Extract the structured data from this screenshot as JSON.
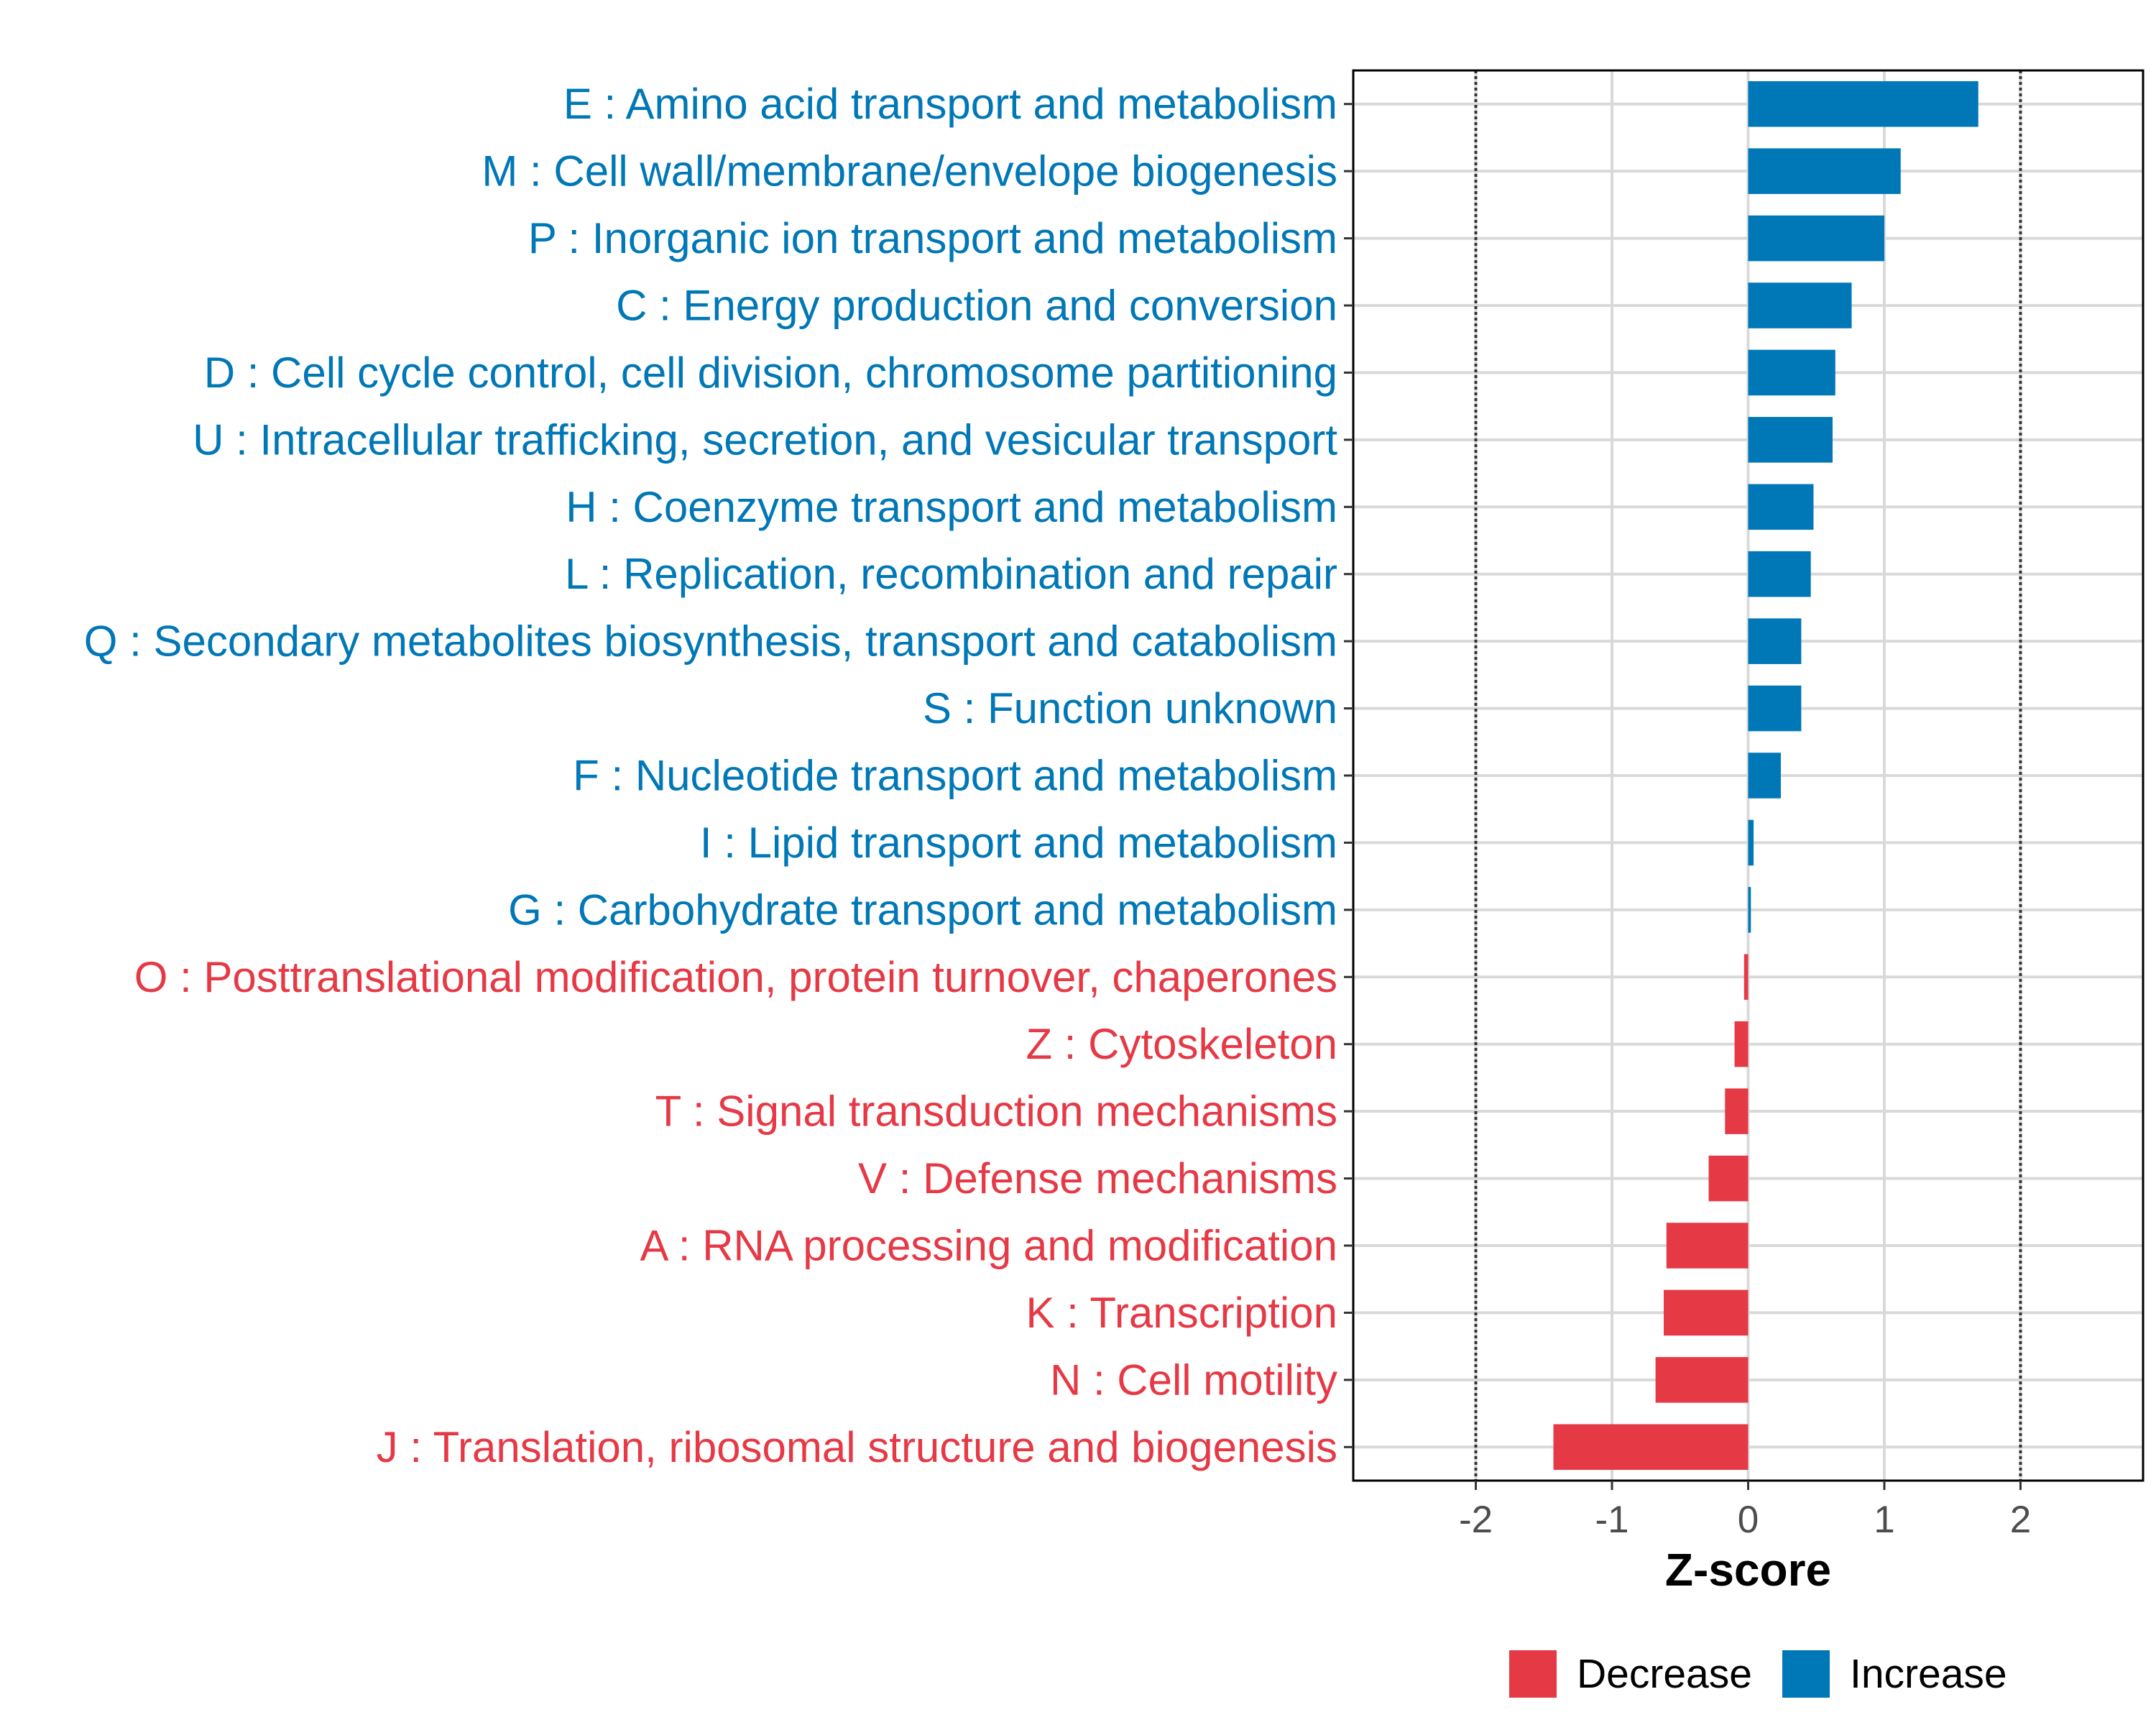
{
  "chart_data": {
    "type": "bar",
    "orientation": "horizontal",
    "xlabel": "Z-score",
    "xlim": [
      -2.9,
      2.9
    ],
    "xticks": [
      -2,
      -1,
      0,
      1,
      2
    ],
    "xtick_labels": [
      "-2",
      "-1",
      "0",
      "1",
      "2"
    ],
    "reference_lines": [
      -2,
      2
    ],
    "grid": true,
    "legend_position": "bottom",
    "categories": [
      "E : Amino acid transport and metabolism",
      "M : Cell wall/membrane/envelope biogenesis",
      "P : Inorganic ion transport and metabolism",
      "C : Energy production and conversion",
      "D : Cell cycle control, cell division, chromosome partitioning",
      "U : Intracellular trafficking, secretion, and vesicular transport",
      "H : Coenzyme transport and metabolism",
      "L : Replication, recombination and repair",
      "Q : Secondary metabolites biosynthesis, transport and catabolism",
      "S : Function unknown",
      "F : Nucleotide transport and metabolism",
      "I : Lipid transport and metabolism",
      "G : Carbohydrate transport and metabolism",
      "O : Posttranslational modification, protein turnover, chaperones",
      "Z : Cytoskeleton",
      "T : Signal transduction mechanisms",
      "V : Defense mechanisms",
      "A : RNA processing and modification",
      "K : Transcription",
      "N : Cell motility",
      "J : Translation, ribosomal structure and biogenesis"
    ],
    "values": [
      1.69,
      1.12,
      1.0,
      0.76,
      0.64,
      0.62,
      0.48,
      0.46,
      0.39,
      0.39,
      0.24,
      0.04,
      0.02,
      -0.03,
      -0.1,
      -0.17,
      -0.29,
      -0.6,
      -0.62,
      -0.68,
      -1.43
    ],
    "groups": [
      "Increase",
      "Increase",
      "Increase",
      "Increase",
      "Increase",
      "Increase",
      "Increase",
      "Increase",
      "Increase",
      "Increase",
      "Increase",
      "Increase",
      "Increase",
      "Decrease",
      "Decrease",
      "Decrease",
      "Decrease",
      "Decrease",
      "Decrease",
      "Decrease",
      "Decrease"
    ],
    "legend": [
      {
        "name": "Decrease",
        "color": "#e63946"
      },
      {
        "name": "Increase",
        "color": "#0077b6"
      }
    ]
  }
}
